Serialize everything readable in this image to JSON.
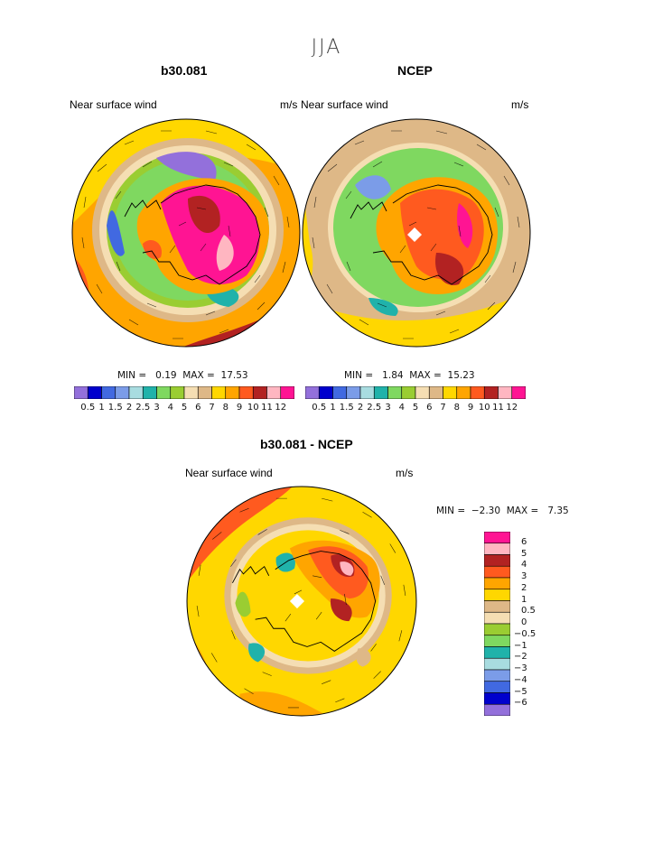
{
  "figure": {
    "season": "JJA"
  },
  "colors": {
    "abs_scale": [
      "#9370db",
      "#0000cd",
      "#4169e1",
      "#7b9ce8",
      "#a8dce0",
      "#20b2aa",
      "#7fd860",
      "#9acd32",
      "#f5deb3",
      "#deb887",
      "#ffd700",
      "#ffa500",
      "#ff5a1f",
      "#b22222",
      "#ffb6c1",
      "#ff1493"
    ],
    "diff_scale": [
      "#ff1493",
      "#ffb6c1",
      "#b22222",
      "#ff5a1f",
      "#ffa500",
      "#ffd700",
      "#deb887",
      "#f5deb3",
      "#9acd32",
      "#7fd860",
      "#20b2aa",
      "#a8dce0",
      "#7b9ce8",
      "#4169e1",
      "#0000cd",
      "#9370db"
    ]
  },
  "panels": [
    {
      "id": "model",
      "title": "b30.081",
      "left_label": "Near surface wind",
      "right_label": "m/s",
      "min_label": "MIN =",
      "min_value": "0.19",
      "max_label": "MAX =",
      "max_value": "17.53",
      "colorbar_labels": [
        "0.5",
        "1",
        "1.5",
        "2",
        "2.5",
        "3",
        "4",
        "5",
        "6",
        "7",
        "8",
        "9",
        "10",
        "11",
        "12"
      ]
    },
    {
      "id": "obs",
      "title": "NCEP",
      "left_label": "Near surface wind",
      "right_label": "m/s",
      "min_label": "MIN =",
      "min_value": "1.84",
      "max_label": "MAX =",
      "max_value": "15.23",
      "colorbar_labels": [
        "0.5",
        "1",
        "1.5",
        "2",
        "2.5",
        "3",
        "4",
        "5",
        "6",
        "7",
        "8",
        "9",
        "10",
        "11",
        "12"
      ]
    },
    {
      "id": "diff",
      "title": "b30.081 - NCEP",
      "left_label": "Near surface wind",
      "right_label": "m/s",
      "min_label": "MIN =",
      "min_value": "−2.30",
      "max_label": "MAX =",
      "max_value": "7.35",
      "colorbar_labels": [
        "6",
        "5",
        "4",
        "3",
        "2",
        "1",
        "0.5",
        "0",
        "−0.5",
        "−1",
        "−2",
        "−3",
        "−4",
        "−5",
        "−6"
      ]
    }
  ]
}
